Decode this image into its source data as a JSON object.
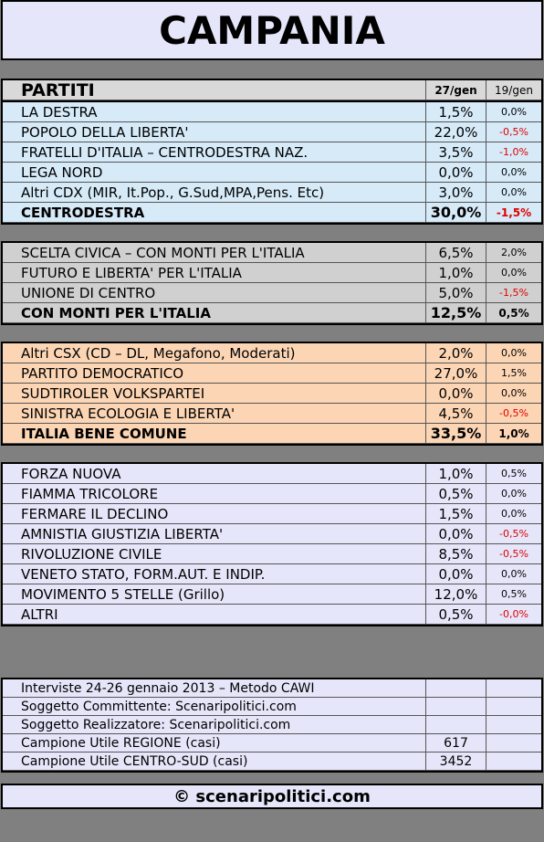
{
  "title": "CAMPANIA",
  "header": {
    "party": "PARTITI",
    "col1": "27/gen",
    "col2": "19/gen"
  },
  "sections": [
    {
      "rows": [
        [
          "LA DESTRA",
          "1,5%",
          "0,0%"
        ],
        [
          "POPOLO DELLA LIBERTA'",
          "22,0%",
          "-0,5%"
        ],
        [
          "FRATELLI D'ITALIA – CENTRODESTRA NAZ.",
          "3,5%",
          "-1,0%"
        ],
        [
          "LEGA NORD",
          "0,0%",
          "0,0%"
        ],
        [
          "Altri CDX (MIR, It.Pop., G.Sud,MPA,Pens. Etc)",
          "3,0%",
          "0,0%"
        ]
      ],
      "total": [
        "CENTRODESTRA",
        "30,0%",
        "-1,5%"
      ]
    },
    {
      "rows": [
        [
          "SCELTA CIVICA – CON MONTI PER L'ITALIA",
          "6,5%",
          "2,0%"
        ],
        [
          "FUTURO E LIBERTA' PER L'ITALIA",
          "1,0%",
          "0,0%"
        ],
        [
          "UNIONE DI CENTRO",
          "5,0%",
          "-1,5%"
        ]
      ],
      "total": [
        "CON MONTI PER L'ITALIA",
        "12,5%",
        "0,5%"
      ]
    },
    {
      "rows": [
        [
          "Altri CSX (CD – DL, Megafono, Moderati)",
          "2,0%",
          "0,0%"
        ],
        [
          "PARTITO DEMOCRATICO",
          "27,0%",
          "1,5%"
        ],
        [
          "SUDTIROLER VOLKSPARTEI",
          "0,0%",
          "0,0%"
        ],
        [
          "SINISTRA ECOLOGIA E LIBERTA'",
          "4,5%",
          "-0,5%"
        ]
      ],
      "total": [
        "ITALIA BENE COMUNE",
        "33,5%",
        "1,0%"
      ]
    },
    {
      "rows": [
        [
          "FORZA NUOVA",
          "1,0%",
          "0,5%"
        ],
        [
          "FIAMMA TRICOLORE",
          "0,5%",
          "0,0%"
        ],
        [
          "FERMARE IL DECLINO",
          "1,5%",
          "0,0%"
        ],
        [
          "AMNISTIA GIUSTIZIA LIBERTA'",
          "0,0%",
          "-0,5%"
        ],
        [
          "RIVOLUZIONE CIVILE",
          "8,5%",
          "-0,5%"
        ],
        [
          "VENETO STATO, FORM.AUT. E INDIP.",
          "0,0%",
          "0,0%"
        ],
        [
          "MOVIMENTO 5 STELLE (Grillo)",
          "12,0%",
          "0,5%"
        ],
        [
          "ALTRI",
          "0,5%",
          "-0,0%"
        ]
      ]
    }
  ],
  "info": [
    {
      "label": "Interviste 24-26 gennaio 2013 – Metodo CAWI"
    },
    {
      "label": "Soggetto Committente: Scenaripolitici.com"
    },
    {
      "label": "Soggetto Realizzatore: Scenaripolitici.com"
    },
    {
      "label": "Campione Utile REGIONE (casi)",
      "value": "617"
    },
    {
      "label": "Campione Utile CENTRO-SUD (casi)",
      "value": "3452"
    }
  ],
  "footer": "© scenaripolitici.com"
}
